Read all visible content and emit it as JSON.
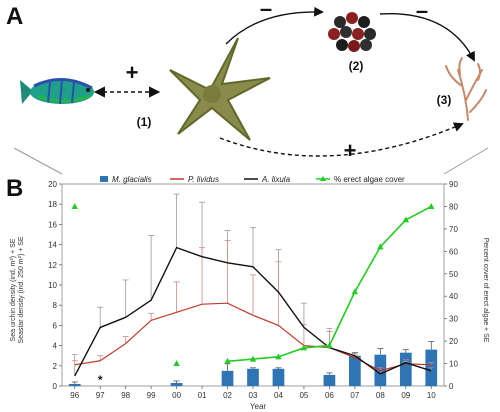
{
  "diagram": {
    "panel_a_label": "A",
    "panel_b_label": "B",
    "node_labels": [
      "(1)",
      "(2)",
      "(3)"
    ],
    "signs": {
      "fish_seastar": "+",
      "seastar_urchin": "–",
      "urchin_algae": "–",
      "seastar_algae": "+"
    }
  },
  "chart_data": {
    "type": "bar+line",
    "categories": [
      "96",
      "97",
      "98",
      "99",
      "00",
      "01",
      "02",
      "03",
      "04",
      "05",
      "06",
      "07",
      "08",
      "09",
      "10"
    ],
    "xlabel": "Year",
    "ylabel_left": [
      "Sea urchin density (ind. m²) + SE",
      "Seastar density (ind. 250 m²) + SE"
    ],
    "ylabel_right": "Percent cover of erect algae + SE",
    "ylim_left": [
      0,
      20
    ],
    "ylim_right": [
      0,
      90
    ],
    "yticks_left": [
      0,
      2,
      4,
      6,
      8,
      10,
      12,
      14,
      16,
      18,
      20
    ],
    "yticks_right": [
      0,
      10,
      20,
      30,
      40,
      50,
      60,
      70,
      80,
      90
    ],
    "annotation": {
      "text": "*",
      "category": "97"
    },
    "legend": [
      "M. glacialis",
      "P. lividus",
      "A. lixula",
      "% erect algae cover"
    ],
    "colors": {
      "bars": "#2e75b6",
      "p_lividus": "#c0392b",
      "a_lixula": "#111111",
      "algae": "#22cc22"
    },
    "series": [
      {
        "name": "M. glacialis",
        "kind": "bar",
        "axis": "left",
        "values": [
          0.2,
          0,
          0,
          0,
          0.3,
          0,
          1.5,
          1.7,
          1.7,
          0,
          1.1,
          3.0,
          3.1,
          3.3,
          3.6
        ],
        "errors": [
          0.2,
          0,
          0,
          0,
          0.2,
          0,
          0.7,
          0.1,
          0.1,
          0,
          0.2,
          0.3,
          0.6,
          0.3,
          0.8
        ]
      },
      {
        "name": "P. lividus",
        "kind": "line",
        "axis": "left",
        "values": [
          2.1,
          2.5,
          4.2,
          6.5,
          7.3,
          8.1,
          8.2,
          7.0,
          6.0,
          4.0,
          3.8,
          2.8,
          1.5,
          2.2,
          2.1
        ],
        "errors": [
          0.4,
          0.5,
          0.7,
          0.7,
          3.0,
          5.6,
          6.2,
          4.0,
          6.3,
          2.1,
          1.9,
          0.2,
          0.3,
          0.2,
          0.2
        ]
      },
      {
        "name": "A. lixula",
        "kind": "line",
        "axis": "left",
        "values": [
          1.0,
          5.8,
          6.8,
          8.5,
          13.7,
          12.8,
          12.2,
          11.8,
          9.3,
          5.8,
          3.8,
          3.0,
          1.2,
          2.3,
          1.5
        ],
        "errors": [
          2.1,
          2.0,
          3.7,
          6.4,
          5.3,
          5.4,
          3.2,
          3.9,
          4.2,
          2.4,
          1.6,
          0.2,
          0.3,
          0.3,
          0.3
        ]
      },
      {
        "name": "% erect algae cover",
        "kind": "line",
        "axis": "right",
        "values": [
          80,
          null,
          null,
          null,
          10,
          null,
          11,
          12,
          13,
          17,
          18,
          42,
          62,
          74,
          80
        ],
        "errors": [
          1,
          null,
          null,
          null,
          1,
          null,
          1,
          1,
          1,
          1,
          1,
          1,
          1,
          1,
          1
        ]
      }
    ]
  }
}
